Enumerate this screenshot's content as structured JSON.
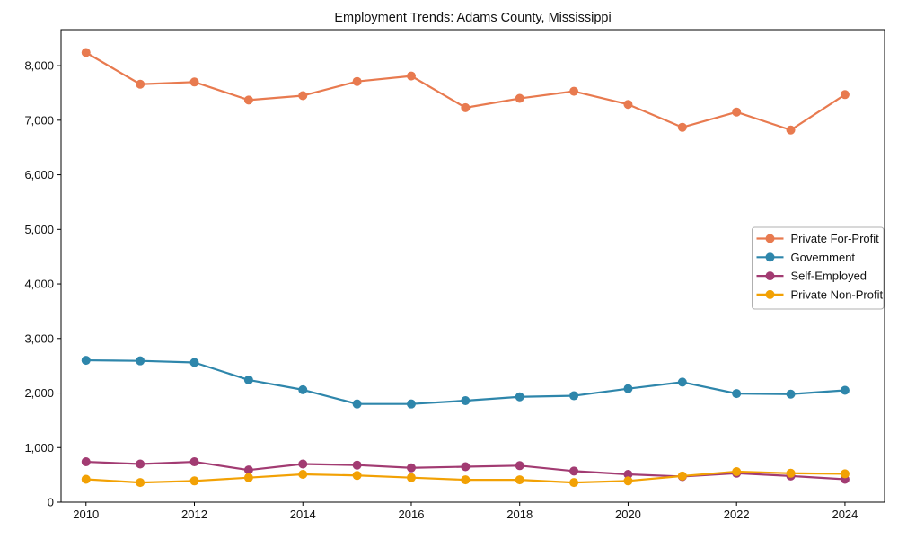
{
  "chart_data": {
    "type": "line",
    "title": "Employment Trends: Adams County, Mississippi",
    "xlabel": "",
    "ylabel": "",
    "x": [
      2010,
      2011,
      2012,
      2013,
      2014,
      2015,
      2016,
      2017,
      2018,
      2019,
      2020,
      2021,
      2022,
      2023,
      2024
    ],
    "xticks": [
      2010,
      2012,
      2014,
      2016,
      2018,
      2020,
      2022,
      2024
    ],
    "yticks": [
      0,
      1000,
      2000,
      3000,
      4000,
      5000,
      6000,
      7000,
      8000
    ],
    "ytick_labels": [
      "0",
      "1,000",
      "2,000",
      "3,000",
      "4,000",
      "5,000",
      "6,000",
      "7,000",
      "8,000"
    ],
    "xlim": [
      2009.54,
      2024.73
    ],
    "ylim": [
      0,
      8660
    ],
    "grid": false,
    "legend_position": "center-right",
    "frame": true,
    "series": [
      {
        "name": "Private For-Profit",
        "color": "#E87A4F",
        "values": [
          8240,
          7660,
          7700,
          7370,
          7450,
          7710,
          7810,
          7230,
          7400,
          7530,
          7290,
          6870,
          7150,
          6820,
          7470
        ]
      },
      {
        "name": "Government",
        "color": "#2E86AB",
        "values": [
          2600,
          2590,
          2560,
          2240,
          2060,
          1800,
          1800,
          1860,
          1930,
          1950,
          2080,
          2200,
          1990,
          1980,
          2050
        ]
      },
      {
        "name": "Self-Employed",
        "color": "#A23B72",
        "values": [
          740,
          700,
          740,
          590,
          700,
          680,
          630,
          650,
          670,
          570,
          510,
          470,
          530,
          480,
          420
        ]
      },
      {
        "name": "Private Non-Profit",
        "color": "#F2A104",
        "values": [
          420,
          360,
          390,
          450,
          510,
          490,
          450,
          410,
          410,
          360,
          390,
          480,
          560,
          530,
          520
        ]
      }
    ]
  }
}
